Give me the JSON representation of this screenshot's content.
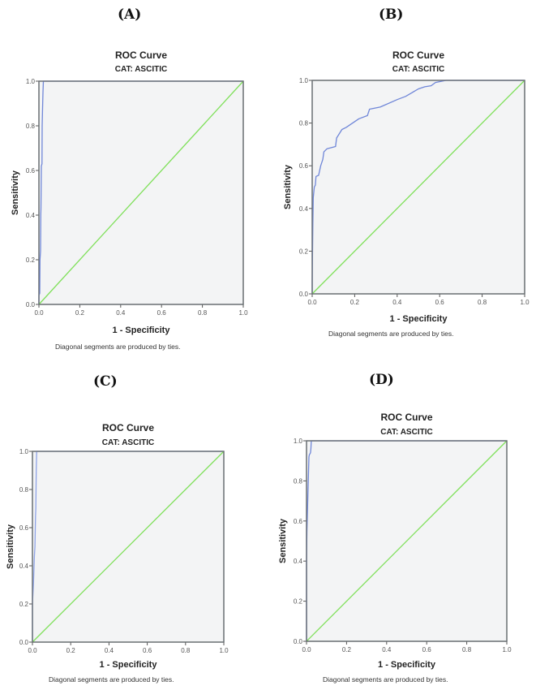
{
  "chart_data": [
    {
      "panel": "(A)",
      "type": "line",
      "title": "ROC Curve",
      "subtitle": "CAT: ASCITIC",
      "xlabel": "1 - Specificity",
      "ylabel": "Sensitivity",
      "xlim": [
        0,
        1
      ],
      "ylim": [
        0,
        1
      ],
      "xticks": [
        "0.0",
        "0.2",
        "0.4",
        "0.6",
        "0.8",
        "1.0"
      ],
      "yticks": [
        "0.0",
        "0.2",
        "0.4",
        "0.6",
        "0.8",
        "1.0"
      ],
      "note": "Diagonal segments are produced by ties.",
      "grid": false,
      "series": [
        {
          "name": "ROC",
          "color": "#6f86d8",
          "x": [
            0,
            0.0,
            0.004,
            0.005,
            0.008,
            0.009,
            0.01,
            0.012,
            0.015,
            0.016,
            0.018,
            0.02,
            0.022,
            1.0
          ],
          "y": [
            0,
            0.04,
            0.05,
            0.2,
            0.24,
            0.4,
            0.43,
            0.62,
            0.63,
            0.8,
            0.88,
            0.95,
            1.0,
            1.0
          ]
        },
        {
          "name": "Reference Line",
          "color": "#7fe05a",
          "x": [
            0,
            1
          ],
          "y": [
            0,
            1
          ]
        }
      ]
    },
    {
      "panel": "(B)",
      "type": "line",
      "title": "ROC Curve",
      "subtitle": "CAT: ASCITIC",
      "xlabel": "1 - Specificity",
      "ylabel": "Sensitivity",
      "xlim": [
        0,
        1
      ],
      "ylim": [
        0,
        1
      ],
      "xticks": [
        "0.0",
        "0.2",
        "0.4",
        "0.6",
        "0.8",
        "1.0"
      ],
      "yticks": [
        "0.0",
        "0.2",
        "0.4",
        "0.6",
        "0.8",
        "1.0"
      ],
      "note": "Diagonal segments are produced by ties.",
      "grid": false,
      "series": [
        {
          "name": "ROC",
          "color": "#6f86d8",
          "x": [
            0,
            0.0,
            0.003,
            0.005,
            0.01,
            0.015,
            0.018,
            0.03,
            0.04,
            0.05,
            0.055,
            0.07,
            0.11,
            0.115,
            0.14,
            0.16,
            0.22,
            0.26,
            0.27,
            0.32,
            0.4,
            0.44,
            0.5,
            0.53,
            0.56,
            0.58,
            0.63,
            1.0
          ],
          "y": [
            0,
            0.06,
            0.33,
            0.45,
            0.5,
            0.51,
            0.55,
            0.555,
            0.6,
            0.63,
            0.665,
            0.68,
            0.69,
            0.73,
            0.77,
            0.78,
            0.82,
            0.835,
            0.865,
            0.875,
            0.91,
            0.925,
            0.96,
            0.97,
            0.975,
            0.99,
            1.0,
            1.0
          ]
        },
        {
          "name": "Reference Line",
          "color": "#7fe05a",
          "x": [
            0,
            1
          ],
          "y": [
            0,
            1
          ]
        }
      ]
    },
    {
      "panel": "(C)",
      "type": "line",
      "title": "ROC Curve",
      "subtitle": "CAT: ASCITIC",
      "xlabel": "1 - Specificity",
      "ylabel": "Sensitivity",
      "xlim": [
        0,
        1
      ],
      "ylim": [
        0,
        1
      ],
      "xticks": [
        "0.0",
        "0.2",
        "0.4",
        "0.6",
        "0.8",
        "1.0"
      ],
      "yticks": [
        "0.0",
        "0.2",
        "0.4",
        "0.6",
        "0.8",
        "1.0"
      ],
      "note": "Diagonal segments are produced by ties.",
      "grid": false,
      "series": [
        {
          "name": "ROC",
          "color": "#8ea3e6",
          "x": [
            0,
            0.0,
            0.005,
            0.01,
            0.013,
            0.016,
            0.018,
            0.02,
            0.022,
            1.0
          ],
          "y": [
            0,
            0.2,
            0.3,
            0.45,
            0.5,
            0.66,
            0.7,
            0.9,
            1.0,
            1.0
          ]
        },
        {
          "name": "Reference Line",
          "color": "#7fe05a",
          "x": [
            0,
            1
          ],
          "y": [
            0,
            1
          ]
        }
      ]
    },
    {
      "panel": "(D)",
      "type": "line",
      "title": "ROC Curve",
      "subtitle": "CAT: ASCITIC",
      "xlabel": "1 - Specificity",
      "ylabel": "Sensitivity",
      "xlim": [
        0,
        1
      ],
      "ylim": [
        0,
        1
      ],
      "xticks": [
        "0.0",
        "0.2",
        "0.4",
        "0.6",
        "0.8",
        "1.0"
      ],
      "yticks": [
        "0.0",
        "0.2",
        "0.4",
        "0.6",
        "0.8",
        "1.0"
      ],
      "note": "Diagonal segments are produced by ties.",
      "grid": false,
      "series": [
        {
          "name": "ROC",
          "color": "#6f86d8",
          "x": [
            0,
            0.0,
            0.002,
            0.006,
            0.01,
            0.012,
            0.014,
            0.02,
            0.022,
            0.024,
            1.0
          ],
          "y": [
            0,
            0.4,
            0.55,
            0.7,
            0.85,
            0.92,
            0.93,
            0.94,
            0.96,
            1.0,
            1.0
          ]
        },
        {
          "name": "Reference Line",
          "color": "#7fe05a",
          "x": [
            0,
            1
          ],
          "y": [
            0,
            1
          ]
        }
      ]
    }
  ]
}
